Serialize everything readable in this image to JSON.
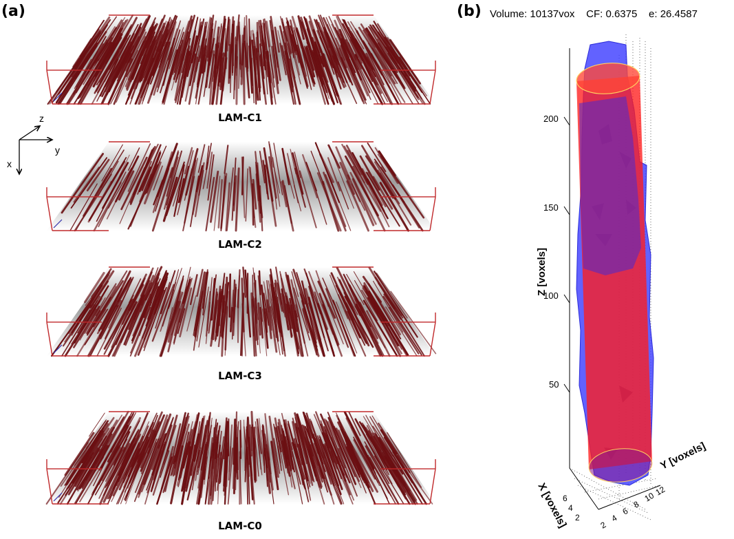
{
  "panel_a": {
    "letter": "(a)",
    "axes": {
      "z": "z",
      "y": "y",
      "x": "x"
    },
    "samples": [
      {
        "label": "LAM-C1",
        "density": 1.0
      },
      {
        "label": "LAM-C2",
        "density": 0.35
      },
      {
        "label": "LAM-C3",
        "density": 0.65
      },
      {
        "label": "LAM-C0",
        "density": 0.9
      }
    ],
    "colors": {
      "fiber": "#6b0f12",
      "box": "#c0282a",
      "shadow": "#8c8c8c"
    }
  },
  "panel_b": {
    "letter": "(b)",
    "info": {
      "volume_label": "Volume:",
      "volume_value": "10137vox",
      "cf_label": "CF:",
      "cf_value": "0.6375",
      "e_label": "e:",
      "e_value": "26.4587"
    },
    "z_axis_label": "Z [voxels]",
    "x_axis_label": "X [voxels]",
    "y_axis_label": "Y [voxels]",
    "z_ticks": [
      "200",
      "150",
      "100",
      "50"
    ],
    "x_ticks": [
      "6",
      "4",
      "2"
    ],
    "y_ticks": [
      "2",
      "4",
      "6",
      "8",
      "10",
      "12"
    ],
    "colors": {
      "blue": "#3f3fff",
      "red": "#ff1e1e"
    }
  }
}
